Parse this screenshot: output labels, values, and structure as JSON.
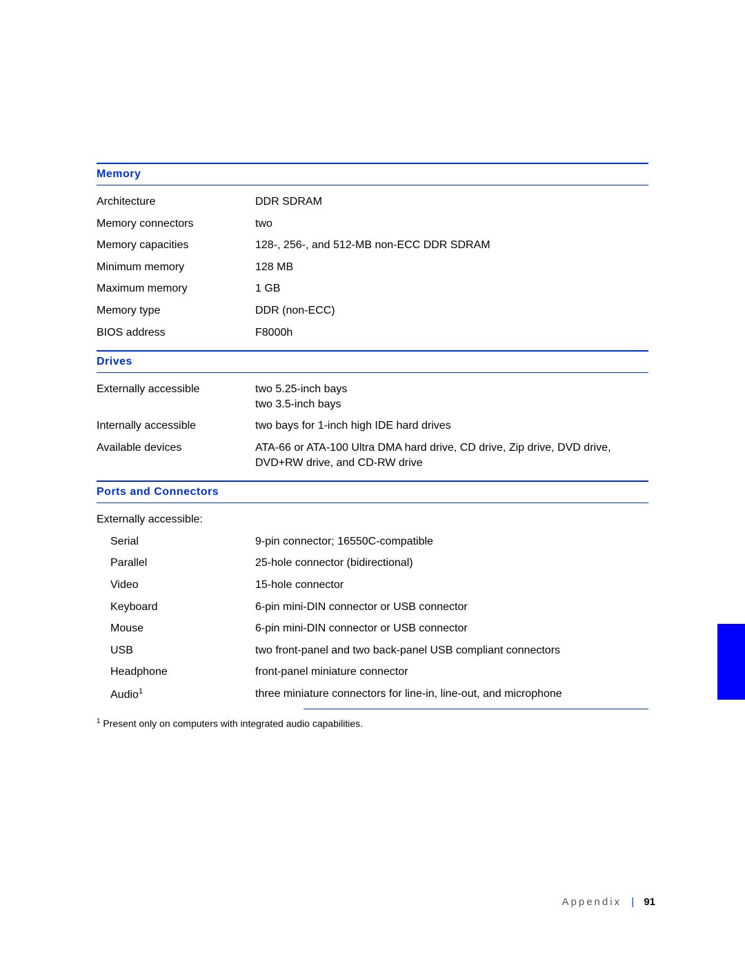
{
  "colors": {
    "accent": "#0033cc",
    "tab": "#0000ff",
    "text": "#000000",
    "footer_text": "#555555",
    "background": "#ffffff"
  },
  "typography": {
    "body_fontsize": 16,
    "header_fontsize": 16,
    "footnote_fontsize": 14,
    "footer_fontsize": 15
  },
  "sections": [
    {
      "title": "Memory",
      "rows": [
        {
          "label": "Architecture",
          "value": "DDR SDRAM"
        },
        {
          "label": "Memory connectors",
          "value": " two"
        },
        {
          "label": "Memory capacities",
          "value": " 128-, 256-, and 512-MB non-ECC DDR SDRAM"
        },
        {
          "label": "Minimum memory",
          "value": "128 MB"
        },
        {
          "label": "Maximum memory",
          "value": "1 GB"
        },
        {
          "label": "Memory type",
          "value": "DDR (non-ECC)"
        },
        {
          "label": "BIOS address",
          "value": " F8000h"
        }
      ]
    },
    {
      "title": "Drives",
      "rows": [
        {
          "label": "Externally accessible",
          "value": " two 5.25-inch bays\ntwo 3.5-inch bays"
        },
        {
          "label": "Internally accessible",
          "value": " two bays for 1-inch high IDE hard drives"
        },
        {
          "label": "Available devices",
          "value": "ATA-66 or ATA-100 Ultra DMA hard drive, CD drive, Zip drive, DVD drive, DVD+RW drive, and CD-RW drive"
        }
      ]
    },
    {
      "title": "Ports and Connectors",
      "rows": [
        {
          "label": "Externally accessible:",
          "value": ""
        },
        {
          "label": "Serial",
          "indent": true,
          "value": "9-pin connector; 16550C-compatible"
        },
        {
          "label": "Parallel",
          "indent": true,
          "value": "25-hole connector (bidirectional)"
        },
        {
          "label": "Video",
          "indent": true,
          "value": "15-hole connector"
        },
        {
          "label": "Keyboard",
          "indent": true,
          "value": "6-pin mini-DIN connector or USB connector"
        },
        {
          "label": "Mouse",
          "indent": true,
          "value": "6-pin mini-DIN connector or USB connector"
        },
        {
          "label": "USB",
          "indent": true,
          "value": "two front-panel and two back-panel USB compliant connectors"
        },
        {
          "label": "Headphone",
          "indent": true,
          "value": "front-panel miniature connector"
        },
        {
          "label": "Audio",
          "sup": "1",
          "indent": true,
          "value": "three miniature connectors for line-in, line-out, and microphone"
        }
      ]
    }
  ],
  "footnote": "Present only on computers with integrated audio capabilities.",
  "footnote_marker": "1",
  "footer": {
    "chapter": "Appendix",
    "separator": "|",
    "page": "91"
  }
}
